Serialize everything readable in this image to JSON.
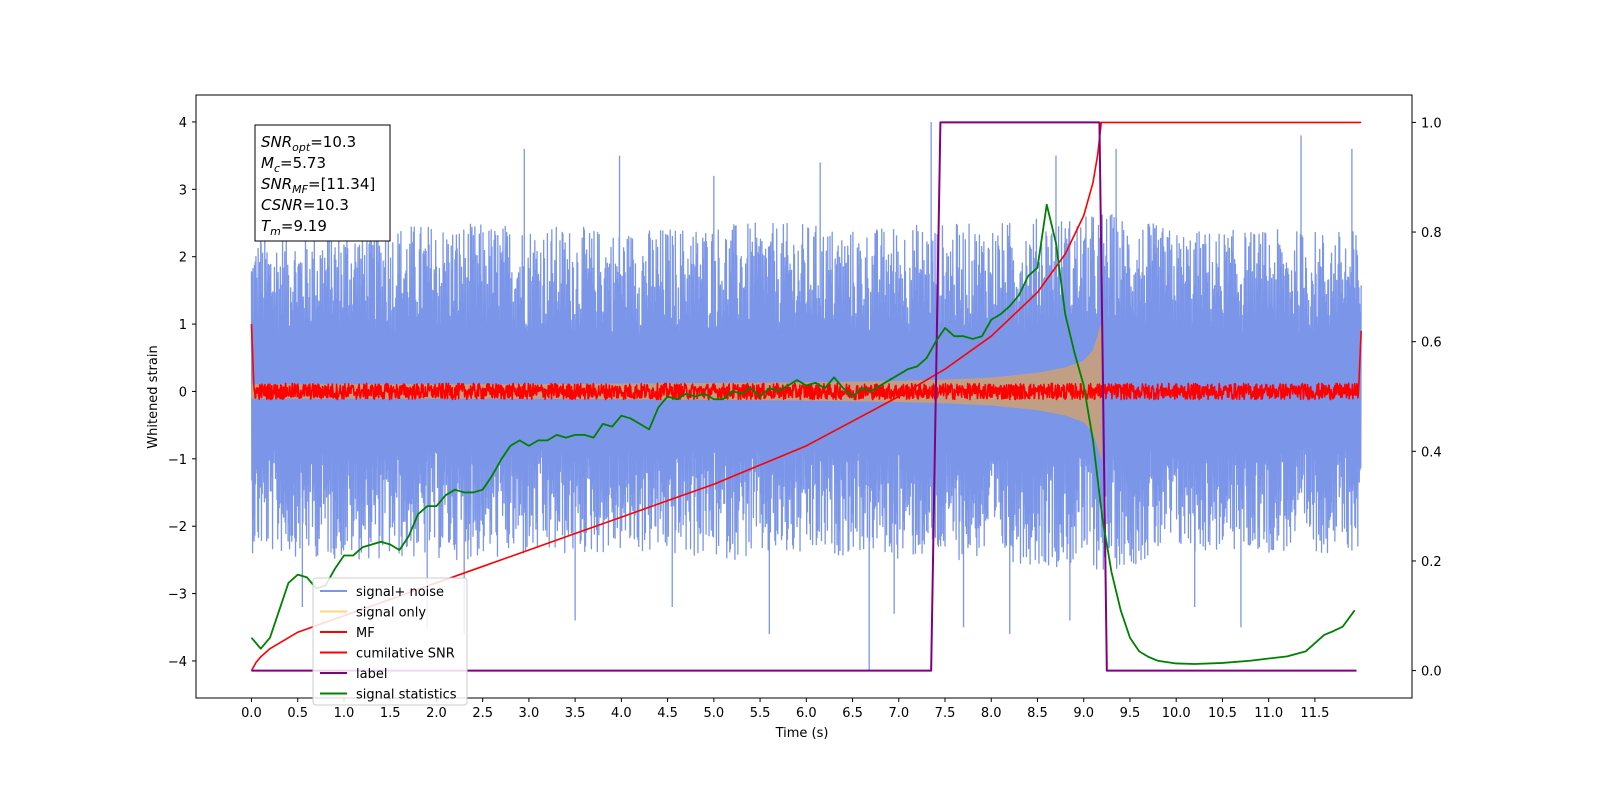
{
  "chart_data": {
    "type": "line",
    "xlabel": "Time (s)",
    "ylabel": "Whitened strain",
    "xlim": [
      -0.6,
      12.55
    ],
    "ylim_left": [
      -4.55,
      4.4
    ],
    "ylim_right": [
      -0.05,
      1.05
    ],
    "x_ticks": [
      "0.0",
      "0.5",
      "1.0",
      "1.5",
      "2.0",
      "2.5",
      "3.0",
      "3.5",
      "4.0",
      "4.5",
      "5.0",
      "5.5",
      "6.0",
      "6.5",
      "7.0",
      "7.5",
      "8.0",
      "8.5",
      "9.0",
      "9.5",
      "10.0",
      "10.5",
      "11.0",
      "11.5"
    ],
    "y_ticks_left": [
      "4",
      "3",
      "2",
      "1",
      "0",
      "−1",
      "−2",
      "−3",
      "−4"
    ],
    "y_ticks_right": [
      "1.0",
      "0.8",
      "0.6",
      "0.4",
      "0.2",
      "0.0"
    ],
    "colors": {
      "signal_noise": "#7b96e8",
      "signal_only": "#c9a07a",
      "mf": "#ff0000",
      "cumulative_snr": "#ff0000",
      "label": "#800080",
      "signal_statistics": "#008000"
    },
    "annotation": {
      "lines": [
        {
          "sym": "SNR",
          "sub": "opt",
          "val": "=10.3"
        },
        {
          "sym": "M",
          "sub": "c",
          "val": "=5.73"
        },
        {
          "sym": "SNR",
          "sub": "MF",
          "val": "=[11.34]"
        },
        {
          "sym": "CSNR",
          "sub": "",
          "val": "=10.3"
        },
        {
          "sym": "T",
          "sub": "m",
          "val": "=9.19"
        }
      ]
    },
    "legend": {
      "placement": "lower-left",
      "entries": [
        "signal+ noise",
        "signal only",
        "MF",
        "cumilative SNR",
        "label",
        "signal statistics"
      ]
    },
    "series": [
      {
        "name": "signal+ noise",
        "axis": "left",
        "envelope_x": [
          0.0,
          1.0,
          2.0,
          3.0,
          4.0,
          5.0,
          6.0,
          6.6,
          7.0,
          7.4,
          8.0,
          8.6,
          9.0,
          9.2,
          10.0,
          11.0,
          12.0
        ],
        "envelope_upper": [
          2.3,
          2.5,
          2.5,
          2.5,
          2.4,
          2.5,
          2.5,
          2.4,
          2.5,
          2.5,
          2.5,
          2.6,
          2.6,
          2.7,
          2.4,
          2.4,
          2.4
        ],
        "envelope_lower": [
          -2.4,
          -2.5,
          -2.5,
          -2.5,
          -2.4,
          -2.5,
          -2.5,
          -2.4,
          -2.5,
          -2.5,
          -2.5,
          -2.6,
          -2.6,
          -2.7,
          -2.4,
          -2.4,
          -2.4
        ],
        "spikes_x": [
          0.1,
          0.55,
          1.45,
          1.9,
          2.3,
          2.95,
          3.5,
          3.98,
          4.55,
          5.0,
          5.6,
          6.15,
          6.68,
          6.95,
          7.35,
          7.7,
          8.2,
          8.7,
          8.85,
          9.35,
          10.2,
          10.7,
          11.35,
          11.9
        ],
        "spikes_y": [
          3.6,
          -3.2,
          3.6,
          -3.5,
          -3.6,
          3.6,
          -3.4,
          3.5,
          -3.2,
          3.2,
          -3.6,
          3.4,
          -4.15,
          -3.3,
          4.0,
          -3.5,
          -3.6,
          3.5,
          -3.4,
          3.6,
          -3.2,
          -3.5,
          3.8,
          3.6
        ]
      },
      {
        "name": "signal only",
        "axis": "left",
        "x": [
          0.0,
          1.0,
          2.0,
          3.0,
          4.0,
          5.0,
          6.0,
          7.0,
          7.5,
          8.0,
          8.5,
          8.8,
          9.0,
          9.1,
          9.15,
          9.19
        ],
        "amplitude": [
          0.1,
          0.1,
          0.1,
          0.1,
          0.11,
          0.12,
          0.13,
          0.15,
          0.17,
          0.2,
          0.27,
          0.35,
          0.45,
          0.6,
          0.8,
          1.0
        ]
      },
      {
        "name": "MF",
        "axis": "left",
        "x": [
          0.0,
          12.0
        ],
        "band": 0.12
      },
      {
        "name": "cumilative SNR",
        "axis": "right",
        "x": [
          0.0,
          0.05,
          0.1,
          0.2,
          0.5,
          1.0,
          1.5,
          2.0,
          2.5,
          3.0,
          3.5,
          4.0,
          4.5,
          5.0,
          5.5,
          6.0,
          6.5,
          7.0,
          7.5,
          8.0,
          8.5,
          8.8,
          9.0,
          9.1,
          9.15,
          9.19,
          9.2,
          12.0
        ],
        "y": [
          0.0,
          0.015,
          0.025,
          0.04,
          0.07,
          0.1,
          0.13,
          0.16,
          0.19,
          0.22,
          0.25,
          0.28,
          0.31,
          0.34,
          0.375,
          0.41,
          0.455,
          0.5,
          0.55,
          0.61,
          0.69,
          0.76,
          0.83,
          0.89,
          0.94,
          1.0,
          1.0,
          1.0
        ]
      },
      {
        "name": "label",
        "axis": "right",
        "x": [
          0.0,
          7.35,
          7.45,
          9.17,
          9.25,
          11.95
        ],
        "y": [
          0.0,
          0.0,
          1.0,
          1.0,
          0.0,
          0.0
        ]
      },
      {
        "name": "signal statistics",
        "axis": "right",
        "x": [
          0.0,
          0.1,
          0.2,
          0.3,
          0.4,
          0.5,
          0.6,
          0.7,
          0.8,
          0.9,
          1.0,
          1.1,
          1.2,
          1.3,
          1.4,
          1.5,
          1.6,
          1.7,
          1.8,
          1.9,
          2.0,
          2.1,
          2.2,
          2.3,
          2.4,
          2.5,
          2.6,
          2.7,
          2.8,
          2.9,
          3.0,
          3.1,
          3.2,
          3.3,
          3.4,
          3.5,
          3.6,
          3.7,
          3.8,
          3.9,
          4.0,
          4.1,
          4.2,
          4.3,
          4.4,
          4.5,
          4.6,
          4.7,
          4.8,
          4.9,
          5.0,
          5.1,
          5.2,
          5.3,
          5.4,
          5.5,
          5.6,
          5.7,
          5.8,
          5.9,
          6.0,
          6.1,
          6.2,
          6.3,
          6.4,
          6.5,
          6.6,
          6.7,
          6.8,
          6.9,
          7.0,
          7.1,
          7.2,
          7.3,
          7.4,
          7.5,
          7.6,
          7.7,
          7.8,
          7.9,
          8.0,
          8.1,
          8.2,
          8.3,
          8.4,
          8.5,
          8.6,
          8.7,
          8.8,
          8.9,
          9.0,
          9.1,
          9.2,
          9.3,
          9.4,
          9.5,
          9.6,
          9.7,
          9.8,
          10.0,
          10.2,
          10.5,
          10.8,
          11.0,
          11.2,
          11.4,
          11.5,
          11.6,
          11.7,
          11.8,
          11.93
        ],
        "y": [
          0.06,
          0.04,
          0.06,
          0.11,
          0.16,
          0.175,
          0.17,
          0.15,
          0.155,
          0.185,
          0.21,
          0.21,
          0.225,
          0.23,
          0.235,
          0.23,
          0.22,
          0.245,
          0.285,
          0.3,
          0.3,
          0.32,
          0.33,
          0.325,
          0.325,
          0.33,
          0.355,
          0.385,
          0.41,
          0.42,
          0.41,
          0.42,
          0.42,
          0.43,
          0.425,
          0.43,
          0.43,
          0.425,
          0.45,
          0.445,
          0.465,
          0.46,
          0.45,
          0.44,
          0.48,
          0.5,
          0.495,
          0.505,
          0.5,
          0.505,
          0.495,
          0.495,
          0.51,
          0.505,
          0.515,
          0.5,
          0.515,
          0.51,
          0.52,
          0.53,
          0.52,
          0.525,
          0.515,
          0.535,
          0.515,
          0.5,
          0.515,
          0.51,
          0.52,
          0.53,
          0.54,
          0.55,
          0.555,
          0.57,
          0.6,
          0.625,
          0.61,
          0.61,
          0.605,
          0.61,
          0.64,
          0.65,
          0.665,
          0.685,
          0.72,
          0.735,
          0.85,
          0.78,
          0.65,
          0.58,
          0.52,
          0.42,
          0.28,
          0.18,
          0.11,
          0.06,
          0.035,
          0.025,
          0.018,
          0.013,
          0.012,
          0.014,
          0.018,
          0.022,
          0.026,
          0.035,
          0.05,
          0.065,
          0.072,
          0.08,
          0.11
        ]
      }
    ]
  }
}
